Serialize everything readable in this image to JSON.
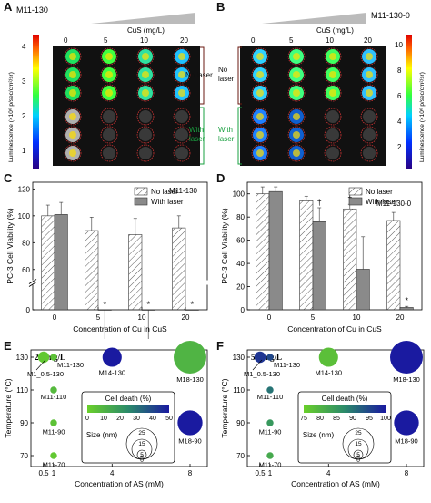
{
  "panel_letters": {
    "a": "A",
    "b": "B",
    "c": "C",
    "d": "D",
    "e": "E",
    "f": "F"
  },
  "panel_a": {
    "sample": "M11-130",
    "cus_label": "CuS (mg/L)",
    "concentrations": [
      "0",
      "5",
      "10",
      "20"
    ],
    "colorbar_label": "Luminescence (×10⁶ p/sec/cm²/sr)",
    "colorbar_ticks": [
      "4",
      "3",
      "2",
      "1"
    ],
    "group_labels": {
      "no_laser": "No laser",
      "with_laser_1": "With",
      "with_laser_2": "laser"
    }
  },
  "panel_b": {
    "sample": "M11-130-0",
    "cus_label": "CuS (mg/L)",
    "concentrations": [
      "0",
      "5",
      "10",
      "20"
    ],
    "colorbar_label": "Luminescence (×10⁶ p/sec/cm²/sr)",
    "colorbar_ticks": [
      "10",
      "8",
      "6",
      "4",
      "2"
    ],
    "group_labels": {
      "no_laser_1": "No",
      "no_laser_2": "laser",
      "with_laser_1": "With",
      "with_laser_2": "laser"
    }
  },
  "chart_data": [
    {
      "type": "bar",
      "panel": "C",
      "annotation": "M11-130",
      "xlabel": "Concentration of Cu in CuS",
      "ylabel": "PC-3 Cell Viability (%)",
      "categories": [
        "0",
        "5",
        "10",
        "20"
      ],
      "ylim": [
        0,
        120
      ],
      "yticks": [
        "0",
        "60",
        "80",
        "100",
        "120"
      ],
      "axis_break": true,
      "legend": "top-right",
      "series": [
        {
          "name": "No laser",
          "values": [
            100,
            89,
            86,
            91
          ],
          "errors": [
            8,
            10,
            12,
            9
          ]
        },
        {
          "name": "With laser",
          "values": [
            101,
            2,
            1,
            0
          ],
          "errors": [
            9,
            1,
            1,
            0
          ]
        }
      ],
      "markers": [
        "*",
        "*",
        "*"
      ]
    },
    {
      "type": "bar",
      "panel": "D",
      "annotation": "M11-130-0",
      "xlabel": "Concentration of Cu in CuS",
      "ylabel": "PC-3 Cell Viability (%)",
      "categories": [
        "0",
        "5",
        "10",
        "20"
      ],
      "ylim": [
        0,
        100
      ],
      "yticks": [
        "0",
        "20",
        "40",
        "60",
        "80",
        "100"
      ],
      "legend": "top-right",
      "series": [
        {
          "name": "No laser",
          "values": [
            100,
            94,
            87,
            77
          ],
          "errors": [
            6,
            4,
            4,
            7
          ]
        },
        {
          "name": "With laser",
          "values": [
            102,
            76,
            35,
            2
          ],
          "errors": [
            4,
            12,
            28,
            1
          ]
        }
      ],
      "markers": [
        "†",
        "†",
        "*"
      ]
    },
    {
      "type": "scatter",
      "panel": "E",
      "title": "2.5 mg/L",
      "xlabel": "Concentration of AS (mM)",
      "ylabel": "Temperature (°C)",
      "xticks": [
        "0.5",
        "1",
        "4",
        "8"
      ],
      "yticks": [
        "70",
        "90",
        "110",
        "130"
      ],
      "legend_title": "Cell death (%)",
      "colorbar_ticks": [
        "0",
        "10",
        "20",
        "30",
        "40",
        "50"
      ],
      "size_legend_title": "Size (nm)",
      "size_legend_values": [
        "25",
        "15",
        "5",
        "0"
      ],
      "points": [
        {
          "label": "M1_0.5-130",
          "x": 0.5,
          "y": 130,
          "size": 6,
          "death": 3
        },
        {
          "label": "M11-130",
          "x": 1,
          "y": 130,
          "size": 2,
          "death": 5
        },
        {
          "label": "M11-110",
          "x": 1,
          "y": 110,
          "size": 2,
          "death": 8
        },
        {
          "label": "M11-90",
          "x": 1,
          "y": 90,
          "size": 2,
          "death": 5
        },
        {
          "label": "M11-70",
          "x": 1,
          "y": 70,
          "size": 2,
          "death": 3
        },
        {
          "label": "M14-130",
          "x": 4,
          "y": 130,
          "size": 13,
          "death": 50
        },
        {
          "label": "M18-130",
          "x": 8,
          "y": 130,
          "size": 25,
          "death": 10
        },
        {
          "label": "M18-90",
          "x": 8,
          "y": 90,
          "size": 18,
          "death": 50
        }
      ]
    },
    {
      "type": "scatter",
      "panel": "F",
      "title": "5.0 mg/L",
      "xlabel": "Concentration of AS (mM)",
      "ylabel": "Temperature (°C)",
      "xticks": [
        "0.5",
        "1",
        "4",
        "8"
      ],
      "yticks": [
        "70",
        "90",
        "110",
        "130"
      ],
      "legend_title": "Cell death (%)",
      "colorbar_ticks": [
        "75",
        "80",
        "85",
        "90",
        "95",
        "100"
      ],
      "size_legend_title": "Size (nm)",
      "size_legend_values": [
        "25",
        "15",
        "5",
        "0"
      ],
      "points": [
        {
          "label": "M1_0.5-130",
          "x": 0.5,
          "y": 130,
          "size": 6,
          "death": 97
        },
        {
          "label": "M11-130",
          "x": 1,
          "y": 130,
          "size": 2,
          "death": 95
        },
        {
          "label": "M11-110",
          "x": 1,
          "y": 110,
          "size": 2,
          "death": 90
        },
        {
          "label": "M11-90",
          "x": 1,
          "y": 90,
          "size": 2,
          "death": 85
        },
        {
          "label": "M11-70",
          "x": 1,
          "y": 70,
          "size": 2,
          "death": 82
        },
        {
          "label": "M14-130",
          "x": 4,
          "y": 130,
          "size": 13,
          "death": 78
        },
        {
          "label": "M18-130",
          "x": 8,
          "y": 130,
          "size": 25,
          "death": 100
        },
        {
          "label": "M18-90",
          "x": 8,
          "y": 90,
          "size": 18,
          "death": 100
        }
      ]
    }
  ]
}
